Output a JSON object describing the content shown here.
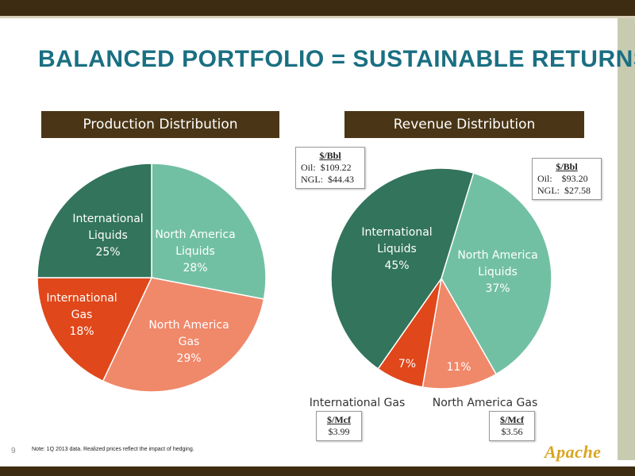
{
  "slide": {
    "title": "BALANCED PORTFOLIO = SUSTAINABLE RETURNS",
    "page_number": "9",
    "note": "Note: 1Q 2013 data. Realized prices reflect the impact of hedging.",
    "logo": "Apache"
  },
  "callouts": {
    "intl_liquids": {
      "unit": "$/Bbl",
      "oil": "Oil:  $109.22",
      "ngl": "NGL:  $44.43"
    },
    "na_liquids": {
      "unit": "$/Bbl",
      "oil": "Oil:    $93.20",
      "ngl": "NGL:  $27.58"
    },
    "intl_gas": {
      "unit": "$/Mcf",
      "value": "$3.99"
    },
    "na_gas": {
      "unit": "$/Mcf",
      "value": "$3.56"
    }
  },
  "colors": {
    "international_liquids": "#32745c",
    "north_america_liquids": "#72c0a3",
    "north_america_gas": "#f0886a",
    "international_gas": "#e0471a"
  },
  "chart_data": [
    {
      "type": "pie",
      "title": "Production Distribution",
      "slices": [
        {
          "id": "na_liquids",
          "label_lines": [
            "North America",
            "Liquids",
            "28%"
          ],
          "value": 28,
          "color": "#72c0a3"
        },
        {
          "id": "na_gas",
          "label_lines": [
            "North America",
            "Gas",
            "29%"
          ],
          "value": 29,
          "color": "#f0886a"
        },
        {
          "id": "intl_gas",
          "label_lines": [
            "International",
            "Gas",
            "18%"
          ],
          "value": 18,
          "color": "#e0471a"
        },
        {
          "id": "intl_liquids",
          "label_lines": [
            "International",
            "Liquids",
            "25%"
          ],
          "value": 25,
          "color": "#32745c"
        }
      ]
    },
    {
      "type": "pie",
      "title": "Revenue Distribution",
      "slices": [
        {
          "id": "na_liquids",
          "label_lines": [
            "North America",
            "Liquids",
            "37%"
          ],
          "value": 37,
          "color": "#72c0a3"
        },
        {
          "id": "na_gas",
          "label_lines": [
            "11%"
          ],
          "value": 11,
          "color": "#f0886a"
        },
        {
          "id": "intl_gas",
          "label_lines": [
            "7%"
          ],
          "value": 7,
          "color": "#e0471a"
        },
        {
          "id": "intl_liquids",
          "label_lines": [
            "International",
            "Liquids",
            "45%"
          ],
          "value": 45,
          "color": "#32745c"
        }
      ],
      "outside_labels": {
        "intl_gas": "International  Gas",
        "na_gas": "North America Gas"
      }
    }
  ]
}
